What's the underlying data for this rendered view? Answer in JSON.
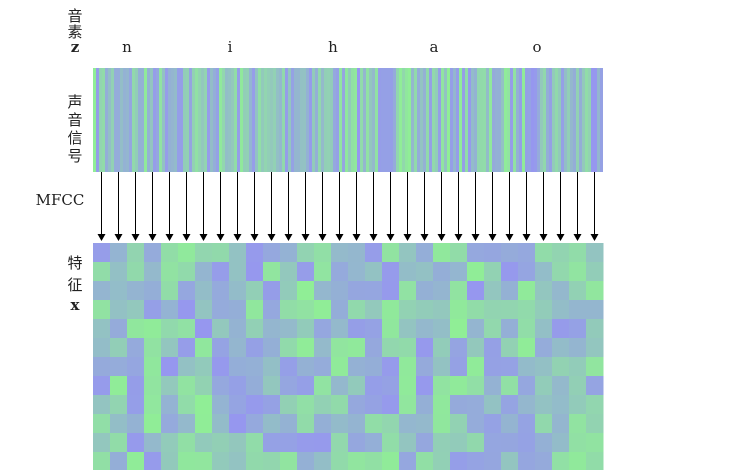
{
  "phoneme_row": {
    "label_chars": [
      "音",
      "素"
    ],
    "symbol": "z",
    "phonemes": [
      "n",
      "i",
      "h",
      "a",
      "o"
    ]
  },
  "signal_row": {
    "label_chars": [
      "声",
      "音",
      "信",
      "号"
    ]
  },
  "mfcc_label": "MFCC",
  "feature_row": {
    "label_chars": [
      "特",
      "征"
    ],
    "symbol": "x"
  }
}
